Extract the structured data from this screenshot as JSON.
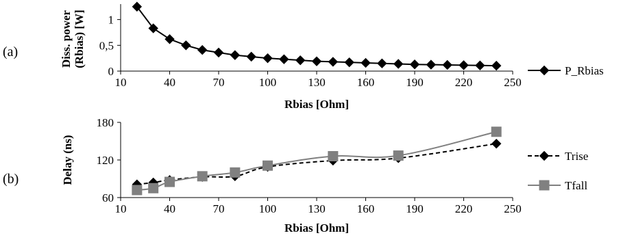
{
  "chart_data": [
    {
      "panel_label": "(a)",
      "type": "line",
      "xlabel": "Rbias [Ohm]",
      "ylabel_line1": "Diss. power",
      "ylabel_line2": "(Rbias) [W]",
      "xlim": [
        10,
        250
      ],
      "ylim": [
        0,
        1.3
      ],
      "xticks": [
        10,
        40,
        70,
        100,
        130,
        160,
        190,
        220,
        250
      ],
      "yticks": [
        {
          "value": 0,
          "label": "0"
        },
        {
          "value": 0.5,
          "label": "0,5"
        },
        {
          "value": 1,
          "label": "1"
        }
      ],
      "grid": false,
      "legend_placement": "right",
      "series": [
        {
          "name": "P_Rbias",
          "color": "#000000",
          "marker": "diamond",
          "line_style": "solid",
          "x": [
            20,
            30,
            40,
            50,
            60,
            70,
            80,
            90,
            100,
            110,
            120,
            130,
            140,
            150,
            160,
            170,
            180,
            190,
            200,
            210,
            220,
            230,
            240
          ],
          "y": [
            1.25,
            0.83,
            0.62,
            0.5,
            0.41,
            0.36,
            0.31,
            0.28,
            0.25,
            0.23,
            0.21,
            0.19,
            0.18,
            0.17,
            0.16,
            0.15,
            0.14,
            0.13,
            0.125,
            0.12,
            0.115,
            0.11,
            0.105
          ]
        }
      ]
    },
    {
      "panel_label": "(b)",
      "type": "line",
      "xlabel": "Rbias [Ohm]",
      "ylabel": "Delay (ns)",
      "xlim": [
        10,
        250
      ],
      "ylim": [
        60,
        180
      ],
      "xticks": [
        10,
        40,
        70,
        100,
        130,
        160,
        190,
        220,
        250
      ],
      "yticks": [
        {
          "value": 60,
          "label": "60"
        },
        {
          "value": 120,
          "label": "120"
        },
        {
          "value": 180,
          "label": "180"
        }
      ],
      "grid": false,
      "legend_placement": "right",
      "series": [
        {
          "name": "Trise",
          "color": "#000000",
          "marker": "diamond",
          "line_style": "dashed",
          "x": [
            20,
            30,
            40,
            60,
            80,
            100,
            140,
            180,
            240
          ],
          "y": [
            81,
            84,
            88,
            93,
            94,
            109,
            119,
            123,
            146
          ]
        },
        {
          "name": "Tfall",
          "color": "#808080",
          "marker": "square",
          "line_style": "solid",
          "x": [
            20,
            30,
            40,
            60,
            80,
            100,
            140,
            180,
            240
          ],
          "y": [
            72,
            75,
            85,
            94,
            100,
            111,
            126,
            127,
            165
          ]
        }
      ]
    }
  ]
}
